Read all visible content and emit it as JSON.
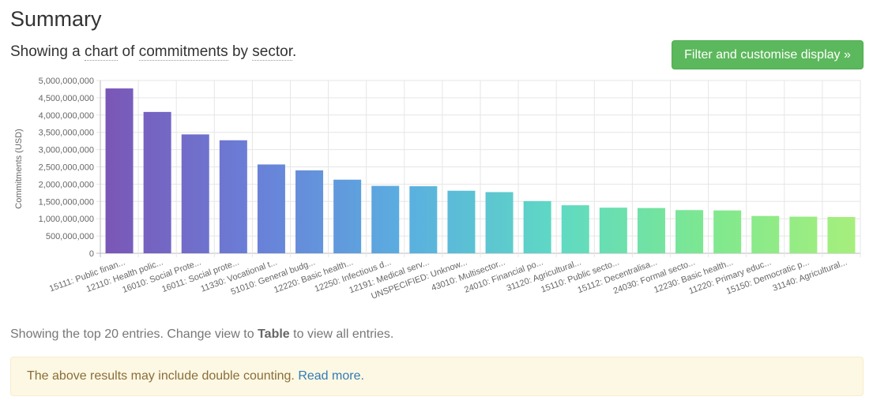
{
  "header": {
    "title": "Summary",
    "subtitle_prefix": "Showing a",
    "view_option": "chart",
    "subtitle_of": "of",
    "measure_option": "commitments",
    "subtitle_by": "by",
    "group_option": "sector",
    "subtitle_end": ".",
    "filter_button_label": "Filter and customise display »"
  },
  "colors": {
    "button": "#5cb85c",
    "alert_bg": "#fcf8e3",
    "link": "#337ab7",
    "bar_gradient": [
      "#7b55b5",
      "#6a7fd8",
      "#5aaee0",
      "#5fd9c4",
      "#7ee88f",
      "#a8ef7c"
    ]
  },
  "chart_data": {
    "type": "bar",
    "ylabel": "Commitments (USD)",
    "ylim": [
      0,
      5000000000
    ],
    "yticks": [
      "0",
      "500,000,000",
      "1,000,000,000",
      "1,500,000,000",
      "2,000,000,000",
      "2,500,000,000",
      "3,000,000,000",
      "3,500,000,000",
      "4,000,000,000",
      "4,500,000,000",
      "5,000,000,000"
    ],
    "grid": true,
    "categories": [
      "15111: Public finan...",
      "12110: Health polic...",
      "16010: Social Prote...",
      "16011: Social prote...",
      "11330: Vocational t...",
      "51010: General budg...",
      "12220: Basic health...",
      "12250: Infectious d...",
      "12191: Medical serv...",
      "UNSPECIFIED: Unknow...",
      "43010: Multisector...",
      "24010: Financial po...",
      "31120: Agricultural...",
      "15110: Public secto...",
      "15112: Decentralisa...",
      "24030: Formal secto...",
      "12230: Basic health...",
      "11220: Primary educ...",
      "15150: Democratic p...",
      "31140: Agricultural..."
    ],
    "values": [
      4770000000,
      4090000000,
      3440000000,
      3270000000,
      2570000000,
      2400000000,
      2130000000,
      1950000000,
      1940000000,
      1810000000,
      1770000000,
      1510000000,
      1390000000,
      1320000000,
      1310000000,
      1250000000,
      1240000000,
      1080000000,
      1060000000,
      1050000000
    ]
  },
  "footer": {
    "note_prefix": "Showing the top 20 entries. Change view to",
    "note_table": "Table",
    "note_suffix": "to view all entries.",
    "alert_text": "The above results may include double counting.",
    "alert_link": "Read more."
  }
}
